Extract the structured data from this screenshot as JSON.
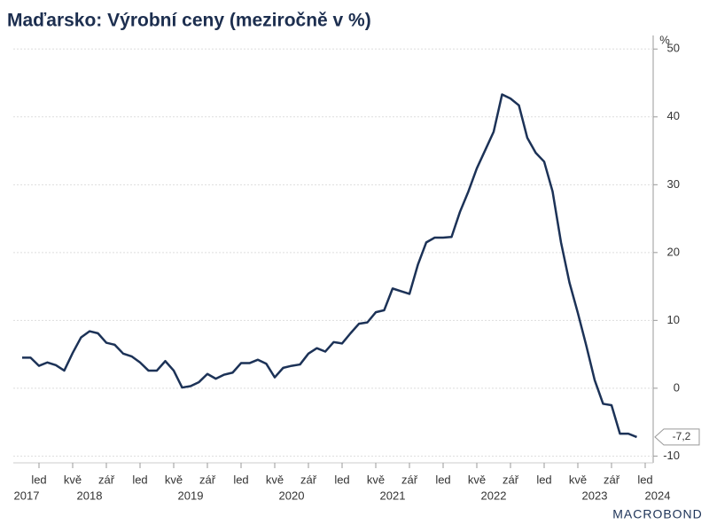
{
  "chart_data": {
    "type": "line",
    "title": "Maďarsko: Výrobní ceny (meziročně v %)",
    "y_unit": "%",
    "source": "MACROBOND",
    "categories": [
      null,
      null,
      "led",
      null,
      null,
      null,
      "kvě",
      null,
      null,
      null,
      "zář",
      null,
      null,
      null,
      "led",
      null,
      null,
      null,
      "kvě",
      null,
      null,
      null,
      "zář",
      null,
      null,
      null,
      "led",
      null,
      null,
      null,
      "kvě",
      null,
      null,
      null,
      "zář",
      null,
      null,
      null,
      "led",
      null,
      null,
      null,
      "kvě",
      null,
      null,
      null,
      "zář",
      null,
      null,
      null,
      "led",
      null,
      null,
      null,
      "kvě",
      null,
      null,
      null,
      "zář",
      null,
      null,
      null,
      "led",
      null,
      null,
      null,
      "kvě",
      null,
      null,
      null,
      "zář",
      null,
      null,
      null,
      "led"
    ],
    "years": [
      "2017",
      "2018",
      "2019",
      "2020",
      "2021",
      "2022",
      "2023",
      "2024"
    ],
    "series": [
      {
        "name": "Výrobní ceny",
        "color": "#1c3257",
        "values": [
          4.5,
          4.5,
          3.3,
          3.8,
          3.4,
          2.6,
          5.2,
          7.5,
          8.4,
          8.1,
          6.7,
          6.4,
          5.1,
          4.7,
          3.8,
          2.6,
          2.6,
          4.0,
          2.6,
          0.1,
          0.3,
          0.9,
          2.1,
          1.4,
          2.0,
          2.3,
          3.7,
          3.7,
          4.2,
          3.6,
          1.6,
          3.0,
          3.3,
          3.5,
          5.1,
          5.9,
          5.4,
          6.8,
          6.6,
          8.1,
          9.5,
          9.7,
          11.2,
          11.5,
          14.7,
          14.3,
          13.9,
          18.2,
          21.5,
          22.2,
          22.2,
          22.3,
          26.0,
          29.0,
          32.4,
          35.1,
          37.8,
          43.3,
          42.7,
          41.7,
          36.9,
          34.7,
          33.4,
          29.0,
          21.5,
          15.6,
          11.1,
          6.3,
          1.2,
          -2.3,
          -2.5,
          -6.7,
          -6.7,
          -7.2,
          null
        ],
        "value_labels": [
          null,
          null,
          null,
          null,
          null,
          null,
          null,
          null,
          null,
          null,
          null,
          null,
          null,
          null,
          null,
          null,
          null,
          null,
          null,
          null,
          null,
          null,
          null,
          null,
          null,
          null,
          null,
          null,
          null,
          null,
          null,
          null,
          null,
          null,
          null,
          null,
          null,
          null,
          null,
          null,
          null,
          null,
          null,
          null,
          null,
          null,
          null,
          null,
          null,
          null,
          null,
          null,
          null,
          null,
          null,
          null,
          null,
          null,
          null,
          null,
          null,
          null,
          null,
          null,
          null,
          null,
          null,
          null,
          null,
          null,
          null,
          null,
          null,
          "-7,2",
          null
        ]
      }
    ],
    "ylim": [
      -11,
      52
    ],
    "yticks": [
      -10,
      0,
      10,
      20,
      30,
      40,
      50
    ],
    "grid": true
  }
}
